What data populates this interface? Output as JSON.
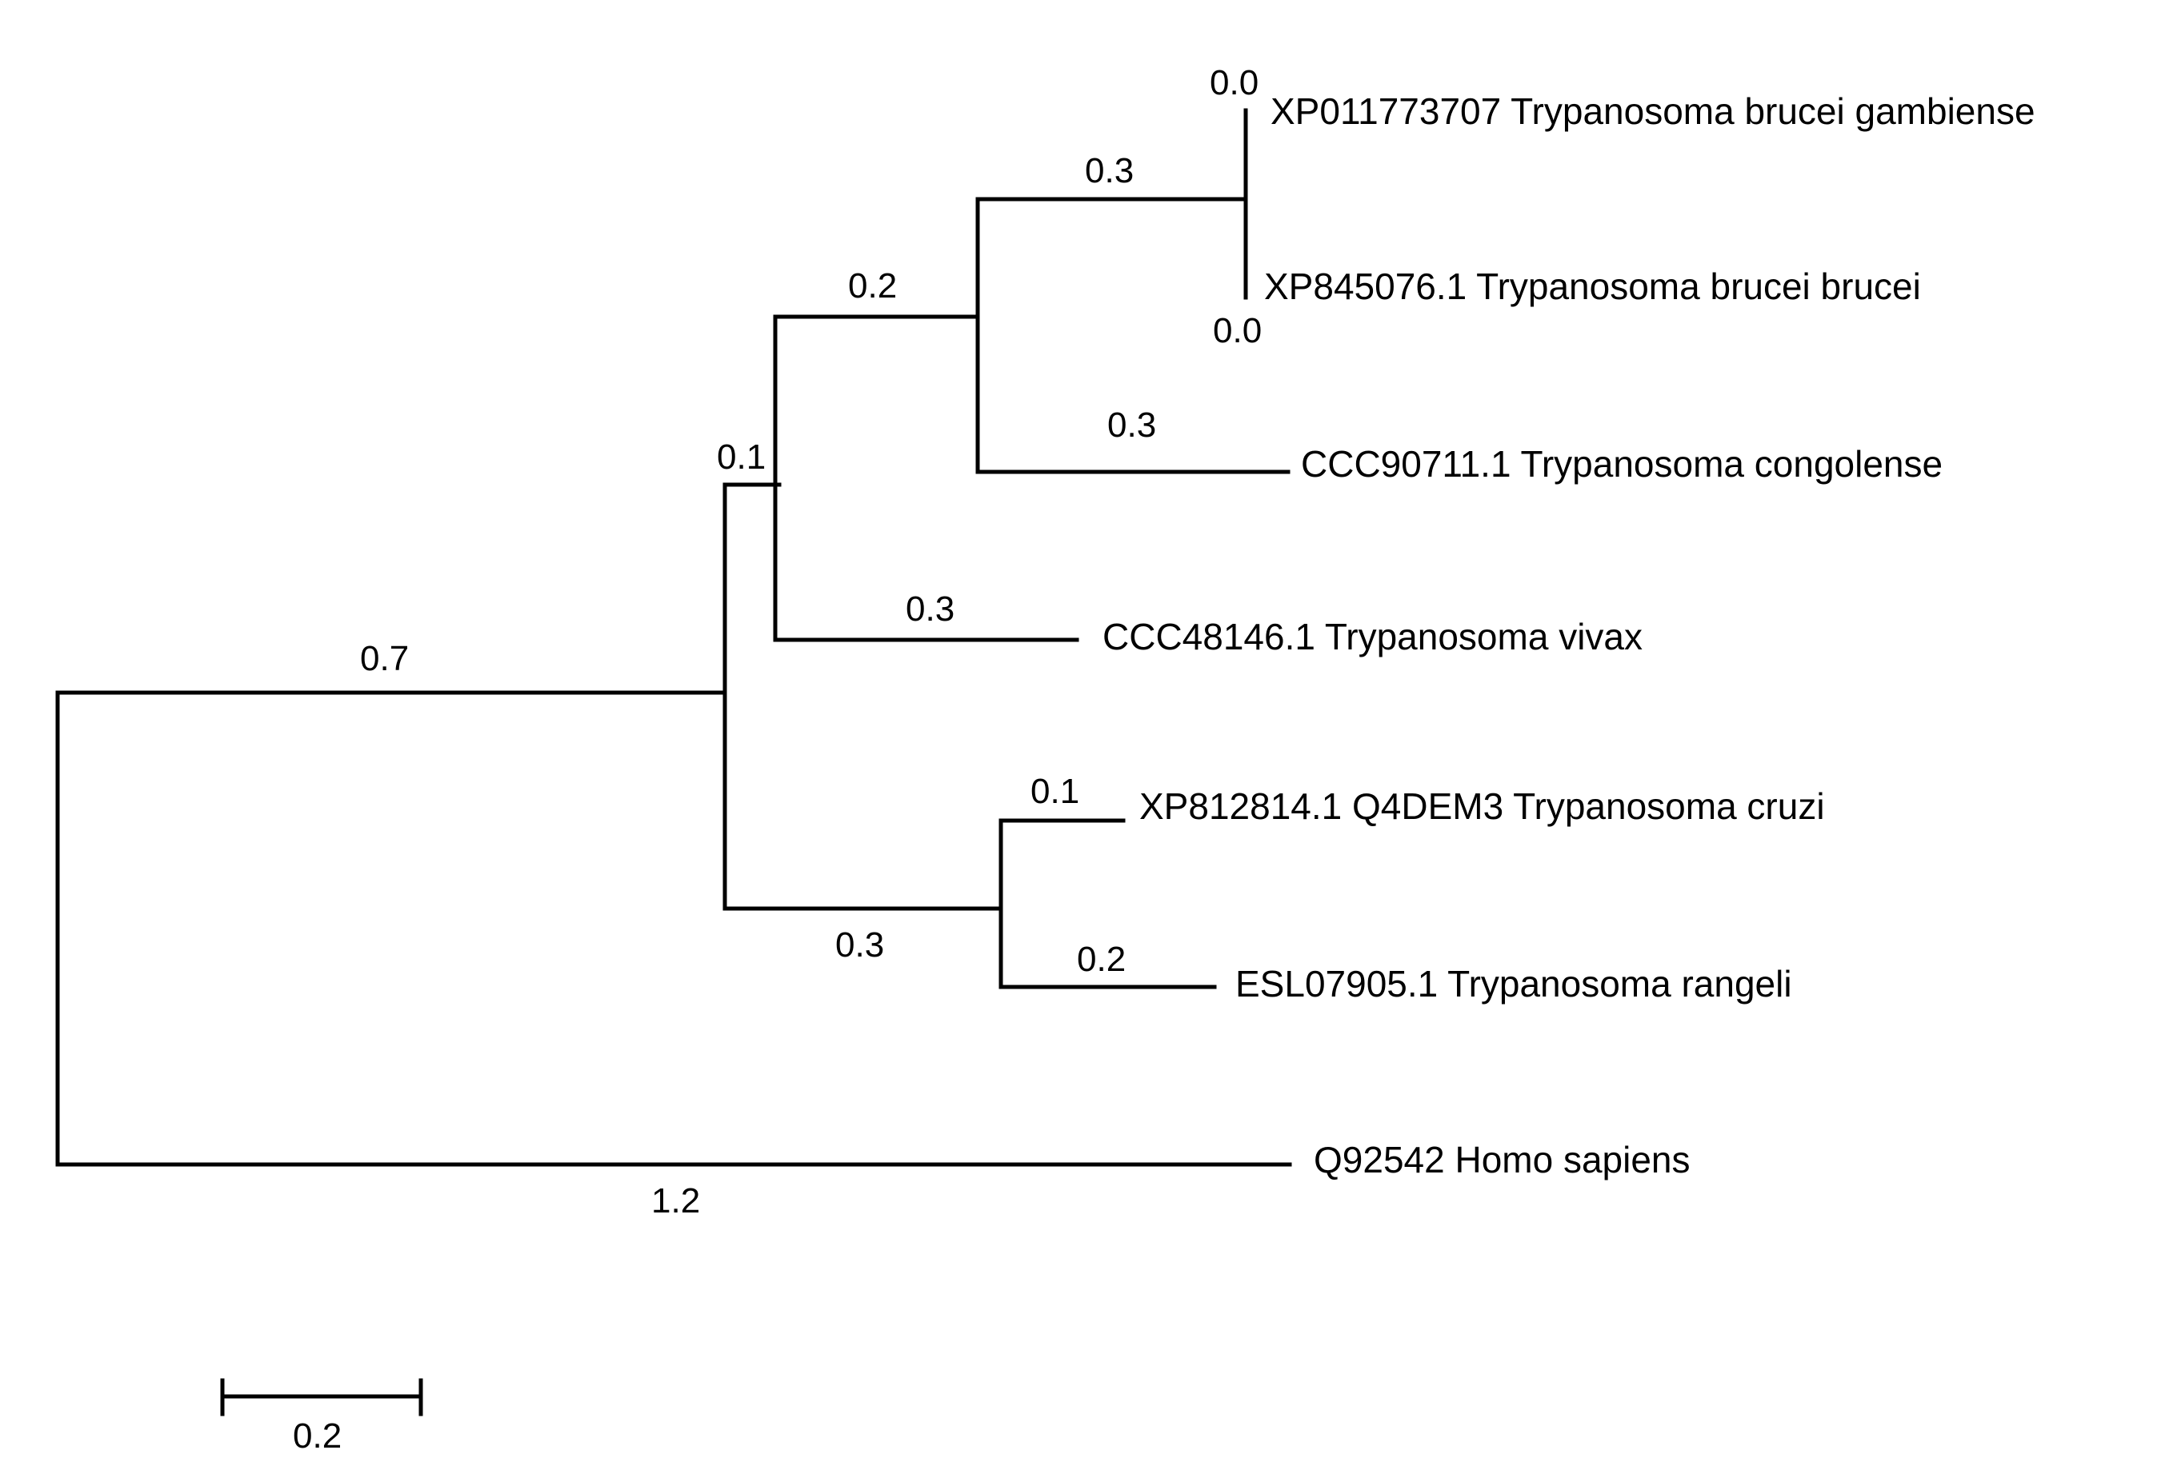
{
  "tree": {
    "leaves": [
      {
        "id": "gambiense",
        "label": "XP011773707 Trypanosoma brucei gambiense"
      },
      {
        "id": "brucei",
        "label": "XP845076.1 Trypanosoma brucei brucei"
      },
      {
        "id": "congolense",
        "label": "CCC90711.1 Trypanosoma congolense"
      },
      {
        "id": "vivax",
        "label": "CCC48146.1 Trypanosoma vivax"
      },
      {
        "id": "cruzi",
        "label": "XP812814.1 Q4DEM3 Trypanosoma cruzi"
      },
      {
        "id": "rangeli",
        "label": "ESL07905.1 Trypanosoma rangeli"
      },
      {
        "id": "homo",
        "label": "Q92542 Homo sapiens"
      }
    ],
    "branch_lengths": {
      "gambiense": "0.0",
      "brucei": "0.0",
      "brucei_clade": "0.3",
      "congolense": "0.3",
      "african_clade": "0.2",
      "vivax": "0.3",
      "african_vivax_clade": "0.1",
      "cruzi": "0.1",
      "rangeli": "0.2",
      "american_clade": "0.3",
      "trypanosoma_clade": "0.7",
      "homo": "1.2"
    },
    "scale_bar": {
      "label": "0.2"
    },
    "line_color": "#000000"
  }
}
